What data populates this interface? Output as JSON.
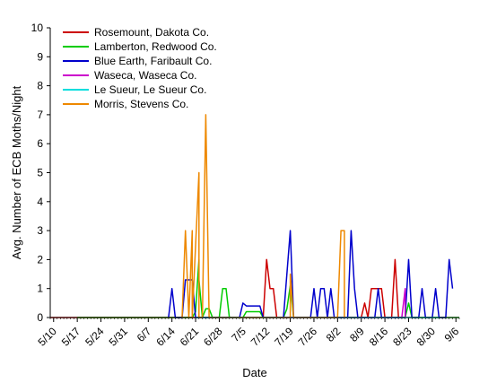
{
  "chart_data": {
    "type": "line",
    "title": "",
    "xlabel": "Date",
    "ylabel": "Avg. Number of ECB Moths/Night",
    "ylim": [
      0,
      10
    ],
    "yticks": [
      0,
      1,
      2,
      3,
      4,
      5,
      6,
      7,
      8,
      9,
      10
    ],
    "xlim": [
      "2005-05-09",
      "2005-09-07"
    ],
    "xtick_labels": [
      "5/10",
      "5/17",
      "5/24",
      "5/31",
      "6/7",
      "6/14",
      "6/21",
      "6/28",
      "7/5",
      "7/12",
      "7/19",
      "7/26",
      "8/2",
      "8/9",
      "8/16",
      "8/23",
      "8/30",
      "9/6"
    ],
    "xtick_dates": [
      "2005-05-10",
      "2005-05-17",
      "2005-05-24",
      "2005-05-31",
      "2005-06-07",
      "2005-06-14",
      "2005-06-21",
      "2005-06-28",
      "2005-07-05",
      "2005-07-12",
      "2005-07-19",
      "2005-07-26",
      "2005-08-02",
      "2005-08-09",
      "2005-08-16",
      "2005-08-23",
      "2005-08-30",
      "2005-09-06"
    ],
    "grid": false,
    "legend_position": "top-left",
    "series": [
      {
        "name": "Rosemount, Dakota Co.",
        "color": "#cc0000",
        "points": [
          [
            "2005-05-09",
            0
          ],
          [
            "2005-05-14",
            0
          ],
          [
            "2005-07-05",
            0
          ],
          [
            "2005-07-11",
            0
          ],
          [
            "2005-07-12",
            2
          ],
          [
            "2005-07-13",
            1
          ],
          [
            "2005-07-14",
            1
          ],
          [
            "2005-07-15",
            0
          ],
          [
            "2005-08-09",
            0
          ],
          [
            "2005-08-10",
            0.5
          ],
          [
            "2005-08-11",
            0
          ],
          [
            "2005-08-12",
            1
          ],
          [
            "2005-08-15",
            1
          ],
          [
            "2005-08-16",
            0
          ],
          [
            "2005-08-18",
            0
          ],
          [
            "2005-08-19",
            2
          ],
          [
            "2005-08-20",
            0
          ]
        ]
      },
      {
        "name": "Lamberton, Redwood Co.",
        "color": "#00cc00",
        "points": [
          [
            "2005-05-17",
            0
          ],
          [
            "2005-06-20",
            0
          ],
          [
            "2005-06-21",
            0.2
          ],
          [
            "2005-06-22",
            2
          ],
          [
            "2005-06-22",
            1.3
          ],
          [
            "2005-06-23",
            0
          ],
          [
            "2005-06-24",
            0.3
          ],
          [
            "2005-06-25",
            0.3
          ],
          [
            "2005-06-26",
            0
          ],
          [
            "2005-06-28",
            0
          ],
          [
            "2005-06-29",
            1
          ],
          [
            "2005-06-30",
            1
          ],
          [
            "2005-07-01",
            0
          ],
          [
            "2005-07-05",
            0
          ],
          [
            "2005-07-06",
            0.2
          ],
          [
            "2005-07-10",
            0.2
          ],
          [
            "2005-07-11",
            0
          ],
          [
            "2005-07-16",
            0
          ],
          [
            "2005-07-17",
            0
          ],
          [
            "2005-07-18",
            0.3
          ],
          [
            "2005-07-19",
            1.1
          ],
          [
            "2005-07-20",
            0
          ],
          [
            "2005-08-22",
            0
          ],
          [
            "2005-08-23",
            0.5
          ],
          [
            "2005-08-24",
            0
          ],
          [
            "2005-09-07",
            0
          ]
        ]
      },
      {
        "name": "Blue Earth, Faribault Co.",
        "color": "#0000cc",
        "points": [
          [
            "2005-06-13",
            0
          ],
          [
            "2005-06-14",
            1
          ],
          [
            "2005-06-15",
            0
          ],
          [
            "2005-06-17",
            0
          ],
          [
            "2005-06-18",
            1.3
          ],
          [
            "2005-06-20",
            1.3
          ],
          [
            "2005-06-21",
            0
          ],
          [
            "2005-07-04",
            0
          ],
          [
            "2005-07-05",
            0.5
          ],
          [
            "2005-07-06",
            0.4
          ],
          [
            "2005-07-10",
            0.4
          ],
          [
            "2005-07-11",
            0
          ],
          [
            "2005-07-17",
            0
          ],
          [
            "2005-07-19",
            3
          ],
          [
            "2005-07-20",
            0
          ],
          [
            "2005-07-25",
            0
          ],
          [
            "2005-07-26",
            1
          ],
          [
            "2005-07-27",
            0
          ],
          [
            "2005-07-28",
            1
          ],
          [
            "2005-07-29",
            1
          ],
          [
            "2005-07-30",
            0
          ],
          [
            "2005-07-31",
            1
          ],
          [
            "2005-08-01",
            0
          ],
          [
            "2005-08-05",
            0
          ],
          [
            "2005-08-06",
            3
          ],
          [
            "2005-08-07",
            1
          ],
          [
            "2005-08-08",
            0
          ],
          [
            "2005-08-13",
            0
          ],
          [
            "2005-08-14",
            1
          ],
          [
            "2005-08-15",
            0
          ],
          [
            "2005-08-22",
            0
          ],
          [
            "2005-08-23",
            2
          ],
          [
            "2005-08-24",
            0
          ],
          [
            "2005-08-26",
            0
          ],
          [
            "2005-08-27",
            1
          ],
          [
            "2005-08-28",
            0
          ],
          [
            "2005-08-30",
            0
          ],
          [
            "2005-08-31",
            1
          ],
          [
            "2005-09-01",
            0
          ],
          [
            "2005-09-03",
            0
          ],
          [
            "2005-09-04",
            2
          ],
          [
            "2005-09-05",
            1
          ]
        ]
      },
      {
        "name": "Waseca, Waseca Co.",
        "color": "#cc00cc",
        "points": [
          [
            "2005-07-12",
            0
          ],
          [
            "2005-07-16",
            0
          ],
          [
            "2005-08-21",
            0
          ],
          [
            "2005-08-22",
            1
          ],
          [
            "2005-08-22",
            0
          ]
        ]
      },
      {
        "name": "Le Sueur, Le Sueur Co.",
        "color": "#00dddd",
        "points": [
          [
            "2005-06-21",
            0
          ],
          [
            "2005-07-20",
            0
          ],
          [
            "2005-08-12",
            0
          ],
          [
            "2005-09-01",
            0
          ]
        ]
      },
      {
        "name": "Morris, Stevens Co.",
        "color": "#ee8800",
        "points": [
          [
            "2005-06-17",
            0
          ],
          [
            "2005-06-18",
            3
          ],
          [
            "2005-06-19",
            0
          ],
          [
            "2005-06-20",
            3
          ],
          [
            "2005-06-20",
            0
          ],
          [
            "2005-06-22",
            5
          ],
          [
            "2005-06-22",
            0
          ],
          [
            "2005-06-23",
            0
          ],
          [
            "2005-06-24",
            7
          ],
          [
            "2005-06-25",
            0
          ],
          [
            "2005-07-19",
            0
          ],
          [
            "2005-07-19",
            1.5
          ],
          [
            "2005-07-20",
            0
          ],
          [
            "2005-08-02",
            0
          ],
          [
            "2005-08-03",
            3
          ],
          [
            "2005-08-04",
            3
          ],
          [
            "2005-08-04",
            0
          ]
        ]
      }
    ]
  }
}
